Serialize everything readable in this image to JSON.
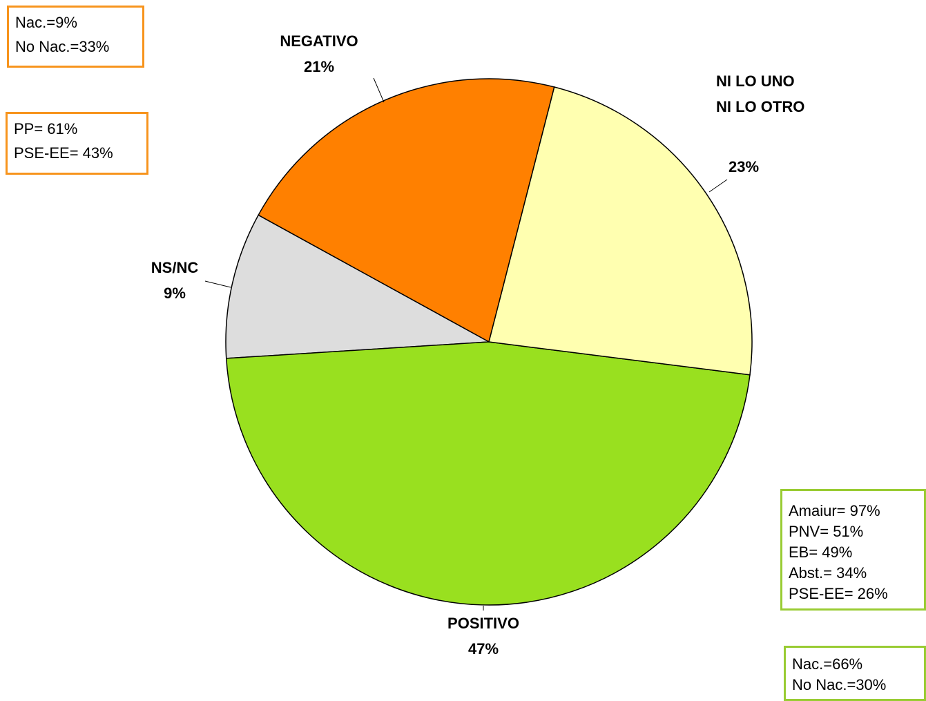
{
  "chart_data": {
    "type": "pie",
    "categories": [
      "NI LO UNO\nNI LO OTRO",
      "POSITIVO",
      "NS/NC",
      "NEGATIVO"
    ],
    "values": [
      23,
      47,
      9,
      21
    ],
    "value_labels": [
      "23%",
      "47%",
      "9%",
      "21%"
    ],
    "colors": [
      "#FFFFB0",
      "#99E01F",
      "#DDDDDD",
      "#FF8000"
    ],
    "annotations": [
      {
        "lines": [
          "Nac.=9%",
          "No Nac.=33%"
        ],
        "color": "#F7941D"
      },
      {
        "lines": [
          "PP= 61%",
          "PSE-EE= 43%"
        ],
        "color": "#F7941D"
      },
      {
        "lines": [
          "Amaiur= 97%",
          "PNV= 51%",
          "EB= 49%",
          "Abst.= 34%",
          "PSE-EE= 26%"
        ],
        "color": "#99CC33"
      },
      {
        "lines": [
          "Nac.=66%",
          "No Nac.=30%"
        ],
        "color": "#99CC33"
      }
    ]
  }
}
